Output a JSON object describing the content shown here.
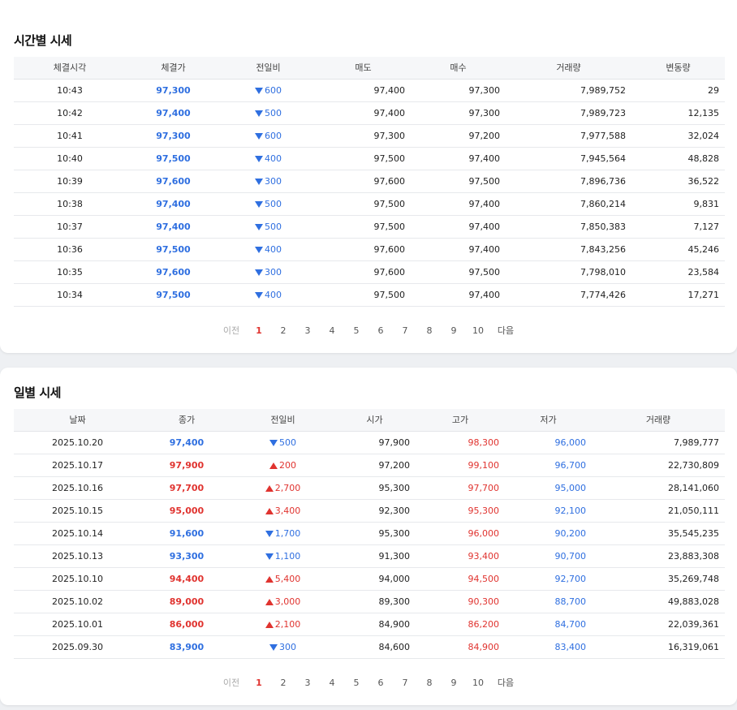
{
  "intraday": {
    "title": "시간별 시세",
    "columns": [
      "체결시각",
      "체결가",
      "전일비",
      "매도",
      "매수",
      "거래량",
      "변동량"
    ],
    "rows": [
      {
        "time": "10:43",
        "price": "97,300",
        "dir": "down",
        "change": "600",
        "ask": "97,400",
        "bid": "97,300",
        "volume": "7,989,752",
        "delta": "29"
      },
      {
        "time": "10:42",
        "price": "97,400",
        "dir": "down",
        "change": "500",
        "ask": "97,400",
        "bid": "97,300",
        "volume": "7,989,723",
        "delta": "12,135"
      },
      {
        "time": "10:41",
        "price": "97,300",
        "dir": "down",
        "change": "600",
        "ask": "97,300",
        "bid": "97,200",
        "volume": "7,977,588",
        "delta": "32,024"
      },
      {
        "time": "10:40",
        "price": "97,500",
        "dir": "down",
        "change": "400",
        "ask": "97,500",
        "bid": "97,400",
        "volume": "7,945,564",
        "delta": "48,828"
      },
      {
        "time": "10:39",
        "price": "97,600",
        "dir": "down",
        "change": "300",
        "ask": "97,600",
        "bid": "97,500",
        "volume": "7,896,736",
        "delta": "36,522"
      },
      {
        "time": "10:38",
        "price": "97,400",
        "dir": "down",
        "change": "500",
        "ask": "97,500",
        "bid": "97,400",
        "volume": "7,860,214",
        "delta": "9,831"
      },
      {
        "time": "10:37",
        "price": "97,400",
        "dir": "down",
        "change": "500",
        "ask": "97,500",
        "bid": "97,400",
        "volume": "7,850,383",
        "delta": "7,127"
      },
      {
        "time": "10:36",
        "price": "97,500",
        "dir": "down",
        "change": "400",
        "ask": "97,600",
        "bid": "97,400",
        "volume": "7,843,256",
        "delta": "45,246"
      },
      {
        "time": "10:35",
        "price": "97,600",
        "dir": "down",
        "change": "300",
        "ask": "97,600",
        "bid": "97,500",
        "volume": "7,798,010",
        "delta": "23,584"
      },
      {
        "time": "10:34",
        "price": "97,500",
        "dir": "down",
        "change": "400",
        "ask": "97,500",
        "bid": "97,400",
        "volume": "7,774,426",
        "delta": "17,271"
      }
    ],
    "pagination": {
      "prev": "이전",
      "pages": [
        "1",
        "2",
        "3",
        "4",
        "5",
        "6",
        "7",
        "8",
        "9",
        "10"
      ],
      "active": "1",
      "next": "다음"
    }
  },
  "daily": {
    "title": "일별 시세",
    "columns": [
      "날짜",
      "종가",
      "전일비",
      "시가",
      "고가",
      "저가",
      "거래량"
    ],
    "rows": [
      {
        "date": "2025.10.20",
        "close": "97,400",
        "dir": "down",
        "change": "500",
        "open": "97,900",
        "high": "98,300",
        "low": "96,000",
        "volume": "7,989,777"
      },
      {
        "date": "2025.10.17",
        "close": "97,900",
        "dir": "up",
        "change": "200",
        "open": "97,200",
        "high": "99,100",
        "low": "96,700",
        "volume": "22,730,809"
      },
      {
        "date": "2025.10.16",
        "close": "97,700",
        "dir": "up",
        "change": "2,700",
        "open": "95,300",
        "high": "97,700",
        "low": "95,000",
        "volume": "28,141,060"
      },
      {
        "date": "2025.10.15",
        "close": "95,000",
        "dir": "up",
        "change": "3,400",
        "open": "92,300",
        "high": "95,300",
        "low": "92,100",
        "volume": "21,050,111"
      },
      {
        "date": "2025.10.14",
        "close": "91,600",
        "dir": "down",
        "change": "1,700",
        "open": "95,300",
        "high": "96,000",
        "low": "90,200",
        "volume": "35,545,235"
      },
      {
        "date": "2025.10.13",
        "close": "93,300",
        "dir": "down",
        "change": "1,100",
        "open": "91,300",
        "high": "93,400",
        "low": "90,700",
        "volume": "23,883,308"
      },
      {
        "date": "2025.10.10",
        "close": "94,400",
        "dir": "up",
        "change": "5,400",
        "open": "94,000",
        "high": "94,500",
        "low": "92,700",
        "volume": "35,269,748"
      },
      {
        "date": "2025.10.02",
        "close": "89,000",
        "dir": "up",
        "change": "3,000",
        "open": "89,300",
        "high": "90,300",
        "low": "88,700",
        "volume": "49,883,028"
      },
      {
        "date": "2025.10.01",
        "close": "86,000",
        "dir": "up",
        "change": "2,100",
        "open": "84,900",
        "high": "86,200",
        "low": "84,700",
        "volume": "22,039,361"
      },
      {
        "date": "2025.09.30",
        "close": "83,900",
        "dir": "down",
        "change": "300",
        "open": "84,600",
        "high": "84,900",
        "low": "83,400",
        "volume": "16,319,061"
      }
    ],
    "pagination": {
      "prev": "이전",
      "pages": [
        "1",
        "2",
        "3",
        "4",
        "5",
        "6",
        "7",
        "8",
        "9",
        "10"
      ],
      "active": "1",
      "next": "다음"
    }
  },
  "colors": {
    "up": "#e0332f",
    "down": "#2f6fe0",
    "header_bg": "#f6f7f9"
  },
  "icons": {
    "up": "triangle-up-icon",
    "down": "triangle-down-icon"
  }
}
